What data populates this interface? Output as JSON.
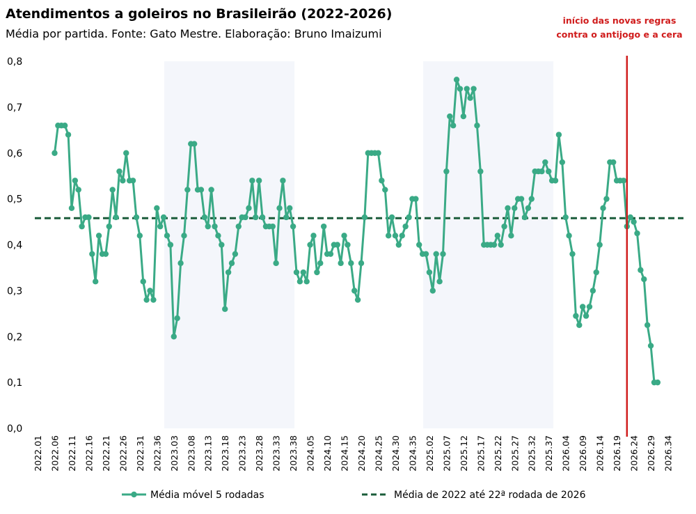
{
  "chart_data": {
    "type": "line",
    "title": "Atendimentos a goleiros no Brasileirão (2022-2026)",
    "subtitle": "Média por partida. Fonte: Gato Mestre. Elaboração: Bruno Imaizumi",
    "ylim": [
      0,
      0.8
    ],
    "yticks": [
      "0,0",
      "0,1",
      "0,2",
      "0,3",
      "0,4",
      "0,5",
      "0,6",
      "0,7",
      "0,8"
    ],
    "xtick_labels": [
      "2022.01",
      "2022.06",
      "2022.11",
      "2022.16",
      "2022.21",
      "2022.26",
      "2022.31",
      "2022.36",
      "2023.03",
      "2023.08",
      "2023.13",
      "2023.18",
      "2023.23",
      "2023.28",
      "2023.33",
      "2023.38",
      "2024.05",
      "2024.10",
      "2024.15",
      "2024.20",
      "2024.25",
      "2024.30",
      "2024.35",
      "2025.02",
      "2025.07",
      "2025.12",
      "2025.17",
      "2025.22",
      "2025.27",
      "2025.32",
      "2025.37",
      "2026.04",
      "2026.09",
      "2026.14",
      "2026.19",
      "2026.24",
      "2026.29",
      "2026.34"
    ],
    "shaded_ranges": [
      [
        "2023.01",
        "2023.38"
      ],
      [
        "2025.01",
        "2025.38"
      ]
    ],
    "shade_color": "#f4f6fb",
    "series": [
      {
        "name": "Média móvel 5 rodadas",
        "color": "#3aaa86",
        "start_index": 5,
        "values": [
          0.6,
          0.66,
          0.66,
          0.66,
          0.64,
          0.48,
          0.54,
          0.52,
          0.44,
          0.46,
          0.46,
          0.38,
          0.32,
          0.42,
          0.38,
          0.38,
          0.44,
          0.52,
          0.46,
          0.56,
          0.54,
          0.6,
          0.54,
          0.54,
          0.46,
          0.42,
          0.32,
          0.28,
          0.3,
          0.28,
          0.48,
          0.44,
          0.46,
          0.42,
          0.4,
          0.2,
          0.24,
          0.36,
          0.42,
          0.52,
          0.62,
          0.62,
          0.52,
          0.52,
          0.46,
          0.44,
          0.52,
          0.44,
          0.42,
          0.4,
          0.26,
          0.34,
          0.36,
          0.38,
          0.44,
          0.46,
          0.46,
          0.48,
          0.54,
          0.46,
          0.54,
          0.46,
          0.44,
          0.44,
          0.44,
          0.36,
          0.48,
          0.54,
          0.46,
          0.48,
          0.44,
          0.34,
          0.32,
          0.34,
          0.32,
          0.4,
          0.42,
          0.34,
          0.36,
          0.44,
          0.38,
          0.38,
          0.4,
          0.4,
          0.36,
          0.42,
          0.4,
          0.36,
          0.3,
          0.28,
          0.36,
          0.46,
          0.6,
          0.6,
          0.6,
          0.6,
          0.54,
          0.52,
          0.42,
          0.46,
          0.42,
          0.4,
          0.42,
          0.44,
          0.46,
          0.5,
          0.5,
          0.4,
          0.38,
          0.38,
          0.34,
          0.3,
          0.38,
          0.32,
          0.38,
          0.56,
          0.68,
          0.66,
          0.76,
          0.74,
          0.68,
          0.74,
          0.72,
          0.74,
          0.66,
          0.56,
          0.4,
          0.4,
          0.4,
          0.4,
          0.42,
          0.4,
          0.44,
          0.48,
          0.42,
          0.48,
          0.5,
          0.5,
          0.46,
          0.48,
          0.5,
          0.56,
          0.56,
          0.56,
          0.58,
          0.56,
          0.54,
          0.54,
          0.64,
          0.58,
          0.46,
          0.42,
          0.38,
          0.245,
          0.225,
          0.265,
          0.245,
          0.265,
          0.3,
          0.34,
          0.4,
          0.48,
          0.5,
          0.58,
          0.58,
          0.54,
          0.54,
          0.54,
          0.44,
          0.46,
          0.45,
          0.425,
          0.345,
          0.325,
          0.225,
          0.18,
          0.1,
          0.1
        ]
      },
      {
        "name": "Média de 2022 até 22ª rodada de 2026",
        "color": "#1a5c3a",
        "type": "hline",
        "y": 0.458
      }
    ],
    "annotation": {
      "text_lines": [
        "início das novas regras",
        "contra o antijogo e a cera"
      ],
      "x_label": "2026.22",
      "color": "#d01c1c"
    },
    "legend_position": "bottom-center",
    "grid": false
  }
}
